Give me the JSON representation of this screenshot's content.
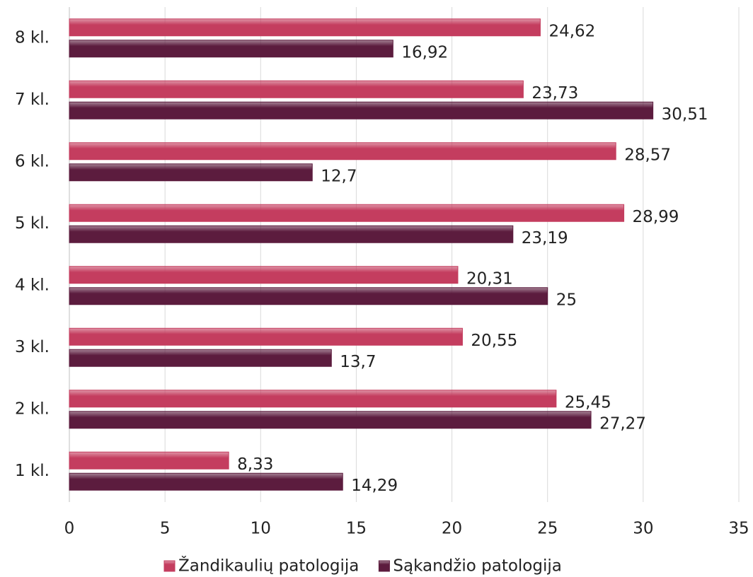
{
  "chart_data": {
    "type": "bar",
    "orientation": "horizontal",
    "categories": [
      "1 kl.",
      "2 kl.",
      "3 kl.",
      "4 kl.",
      "5 kl.",
      "6 kl.",
      "7 kl.",
      "8 kl."
    ],
    "series": [
      {
        "name": "Žandikaulių patologija",
        "color": "#c43d5f",
        "values": [
          8.33,
          25.45,
          20.55,
          20.31,
          28.99,
          28.57,
          23.73,
          24.62
        ],
        "value_labels": [
          "8,33",
          "25,45",
          "20,55",
          "20,31",
          "28,99",
          "28,57",
          "23,73",
          "24,62"
        ]
      },
      {
        "name": "Sąkandžio patologija",
        "color": "#5c1c3e",
        "values": [
          14.29,
          27.27,
          13.7,
          25,
          23.19,
          12.7,
          30.51,
          16.92
        ],
        "value_labels": [
          "14,29",
          "27,27",
          "13,7",
          "25",
          "23,19",
          "12,7",
          "30,51",
          "16,92"
        ]
      }
    ],
    "xlim": [
      0,
      35
    ],
    "xticks": [
      0,
      5,
      10,
      15,
      20,
      25,
      30,
      35
    ],
    "grid": true,
    "legend": "bottom"
  }
}
